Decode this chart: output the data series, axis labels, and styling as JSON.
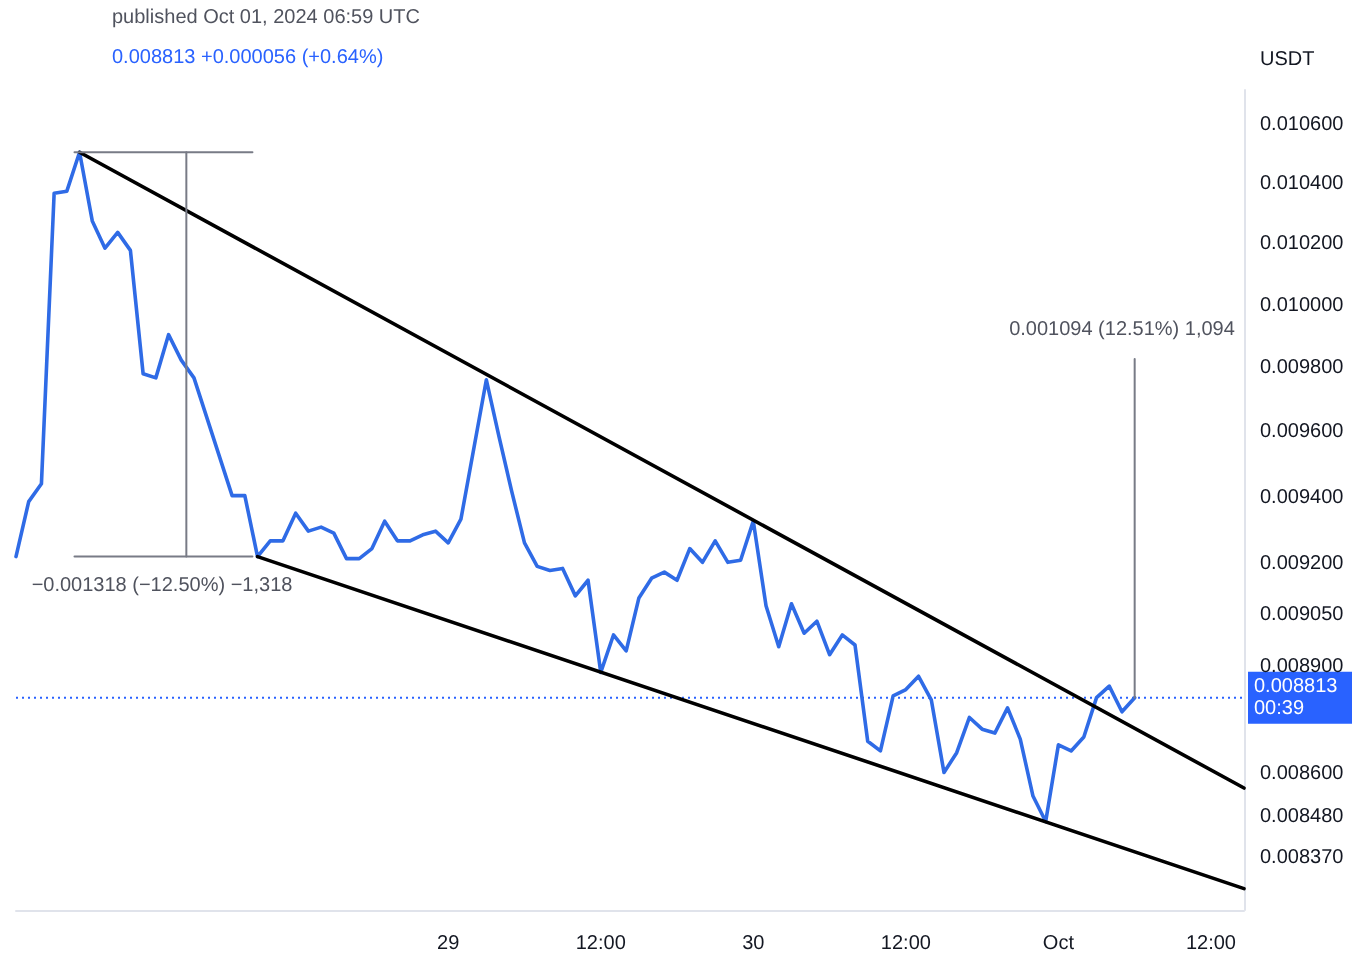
{
  "chart_data": {
    "type": "line",
    "ylabel": "USDT",
    "log": true,
    "marker": "none",
    "annotations": [
      "published Oct 01, 2024 06:59 UTC",
      "0.008813 +0.000056 (+0.64%)",
      "−0.001318 (−12.50%) −1,318",
      "0.001094 (12.51%) 1,094"
    ],
    "xlim": [
      "2024-09-27T14:00",
      "2024-10-01T14:36"
    ],
    "xticks": [
      {
        "value": "2024-09-29",
        "label": "29"
      },
      {
        "value": "2024-09-29T12:00",
        "label": "12:00"
      },
      {
        "value": "2024-09-30",
        "label": "30"
      },
      {
        "value": "2024-09-30T12:00",
        "label": "12:00"
      },
      {
        "value": "2024-10-01",
        "label": "Oct"
      },
      {
        "value": "2024-10-01T12:00",
        "label": "12:00"
      }
    ],
    "ylim": [
      0.00823,
      0.01072
    ],
    "yticks": [
      {
        "value": 0.0106,
        "label": "0.010600"
      },
      {
        "value": 0.0104,
        "label": "0.010400"
      },
      {
        "value": 0.0102,
        "label": "0.010200"
      },
      {
        "value": 0.01,
        "label": "0.010000"
      },
      {
        "value": 0.0098,
        "label": "0.009800"
      },
      {
        "value": 0.0096,
        "label": "0.009600"
      },
      {
        "value": 0.0094,
        "label": "0.009400"
      },
      {
        "value": 0.0092,
        "label": "0.009200"
      },
      {
        "value": 0.00905,
        "label": "0.009050"
      },
      {
        "value": 0.0089,
        "label": "0.008900"
      },
      {
        "value": 0.0086,
        "label": "0.008600"
      },
      {
        "value": 0.00848,
        "label": "0.008480"
      },
      {
        "value": 0.00837,
        "label": "0.008370"
      }
    ],
    "ref_lines": [
      {
        "axis": "y",
        "value": 0.008813,
        "label": "0.008813 00:39",
        "color": "#2962ff",
        "line_style": "dotted"
      }
    ],
    "series": [
      {
        "color": "#2f6be6",
        "x": [
          "2024-09-27T14:00",
          "2024-09-27T15:00",
          "2024-09-27T16:00",
          "2024-09-27T17:00",
          "2024-09-27T18:00",
          "2024-09-27T19:00",
          "2024-09-27T20:00",
          "2024-09-27T21:00",
          "2024-09-27T22:00",
          "2024-09-27T23:00",
          "2024-09-28T00:00",
          "2024-09-28T01:00",
          "2024-09-28T02:00",
          "2024-09-28T03:00",
          "2024-09-28T04:00",
          "2024-09-28T06:00",
          "2024-09-28T07:00",
          "2024-09-28T08:00",
          "2024-09-28T09:00",
          "2024-09-28T10:00",
          "2024-09-28T11:00",
          "2024-09-28T12:00",
          "2024-09-28T13:00",
          "2024-09-28T14:00",
          "2024-09-28T15:00",
          "2024-09-28T16:00",
          "2024-09-28T17:00",
          "2024-09-28T18:00",
          "2024-09-28T19:00",
          "2024-09-28T20:00",
          "2024-09-28T21:00",
          "2024-09-28T22:00",
          "2024-09-28T23:00",
          "2024-09-29T00:00",
          "2024-09-29T01:00",
          "2024-09-29T03:00",
          "2024-09-29T04:00",
          "2024-09-29T05:00",
          "2024-09-29T06:00",
          "2024-09-29T07:00",
          "2024-09-29T08:00",
          "2024-09-29T09:00",
          "2024-09-29T10:00",
          "2024-09-29T11:00",
          "2024-09-29T12:00",
          "2024-09-29T13:00",
          "2024-09-29T14:00",
          "2024-09-29T15:00",
          "2024-09-29T16:00",
          "2024-09-29T17:00",
          "2024-09-29T18:00",
          "2024-09-29T19:00",
          "2024-09-29T20:00",
          "2024-09-29T21:00",
          "2024-09-29T22:00",
          "2024-09-29T23:00",
          "2024-09-30T00:00",
          "2024-09-30T01:00",
          "2024-09-30T02:00",
          "2024-09-30T03:00",
          "2024-09-30T04:00",
          "2024-09-30T05:00",
          "2024-09-30T06:00",
          "2024-09-30T07:00",
          "2024-09-30T08:00",
          "2024-09-30T09:00",
          "2024-09-30T10:00",
          "2024-09-30T11:00",
          "2024-09-30T12:00",
          "2024-09-30T13:00",
          "2024-09-30T14:00",
          "2024-09-30T15:00",
          "2024-09-30T16:00",
          "2024-09-30T17:00",
          "2024-09-30T18:00",
          "2024-09-30T19:00",
          "2024-09-30T20:00",
          "2024-09-30T21:00",
          "2024-09-30T22:00",
          "2024-09-30T23:00",
          "2024-10-01T00:00",
          "2024-10-01T01:00",
          "2024-10-01T02:00",
          "2024-10-01T03:00",
          "2024-10-01T04:00",
          "2024-10-01T05:00",
          "2024-10-01T06:00"
        ],
        "values": [
          0.009223,
          0.009388,
          0.009442,
          0.010369,
          0.010376,
          0.010507,
          0.010277,
          0.010187,
          0.010239,
          0.01018,
          0.009783,
          0.00977,
          0.009907,
          0.009826,
          0.00977,
          0.009526,
          0.009406,
          0.009406,
          0.009223,
          0.00927,
          0.00927,
          0.009353,
          0.009299,
          0.009311,
          0.009293,
          0.009217,
          0.009217,
          0.009247,
          0.009329,
          0.00927,
          0.00927,
          0.009288,
          0.009299,
          0.009264,
          0.009335,
          0.009764,
          0.009586,
          0.009418,
          0.009264,
          0.009194,
          0.009182,
          0.009188,
          0.009107,
          0.009153,
          0.008885,
          0.008993,
          0.008947,
          0.009101,
          0.009159,
          0.009177,
          0.009153,
          0.009247,
          0.009206,
          0.00927,
          0.009206,
          0.009212,
          0.009329,
          0.009078,
          0.008959,
          0.009084,
          0.008998,
          0.009033,
          0.008936,
          0.008993,
          0.008964,
          0.00869,
          0.008663,
          0.008818,
          0.008836,
          0.008874,
          0.008807,
          0.008603,
          0.008658,
          0.008757,
          0.008724,
          0.008713,
          0.008784,
          0.008696,
          0.008538,
          0.008468,
          0.00868,
          0.008663,
          0.008702,
          0.008813,
          0.008846,
          0.008773,
          0.008813
        ]
      },
      {
        "color": "#000000",
        "x": [
          "2024-09-27T19:00",
          "2024-10-01T14:36"
        ],
        "values": [
          0.010507,
          0.00856
        ]
      },
      {
        "color": "#000000",
        "x": [
          "2024-09-28T09:00",
          "2024-10-01T14:36"
        ],
        "values": [
          0.009223,
          0.008287
        ]
      },
      {
        "color": "#787b86",
        "x": [
          "2024-09-28T03:24",
          "2024-09-28T03:24"
        ],
        "values": [
          0.010507,
          0.009223
        ]
      },
      {
        "color": "#787b86",
        "x": [
          "2024-09-27T18:36",
          "2024-09-28T08:36"
        ],
        "values": [
          0.010507,
          0.010507
        ]
      },
      {
        "color": "#787b86",
        "x": [
          "2024-09-27T18:36",
          "2024-09-28T08:36"
        ],
        "values": [
          0.009223,
          0.009223
        ]
      },
      {
        "color": "#787b86",
        "x": [
          "2024-10-01T06:00",
          "2024-10-01T06:00"
        ],
        "values": [
          0.008813,
          0.00983
        ]
      }
    ]
  }
}
